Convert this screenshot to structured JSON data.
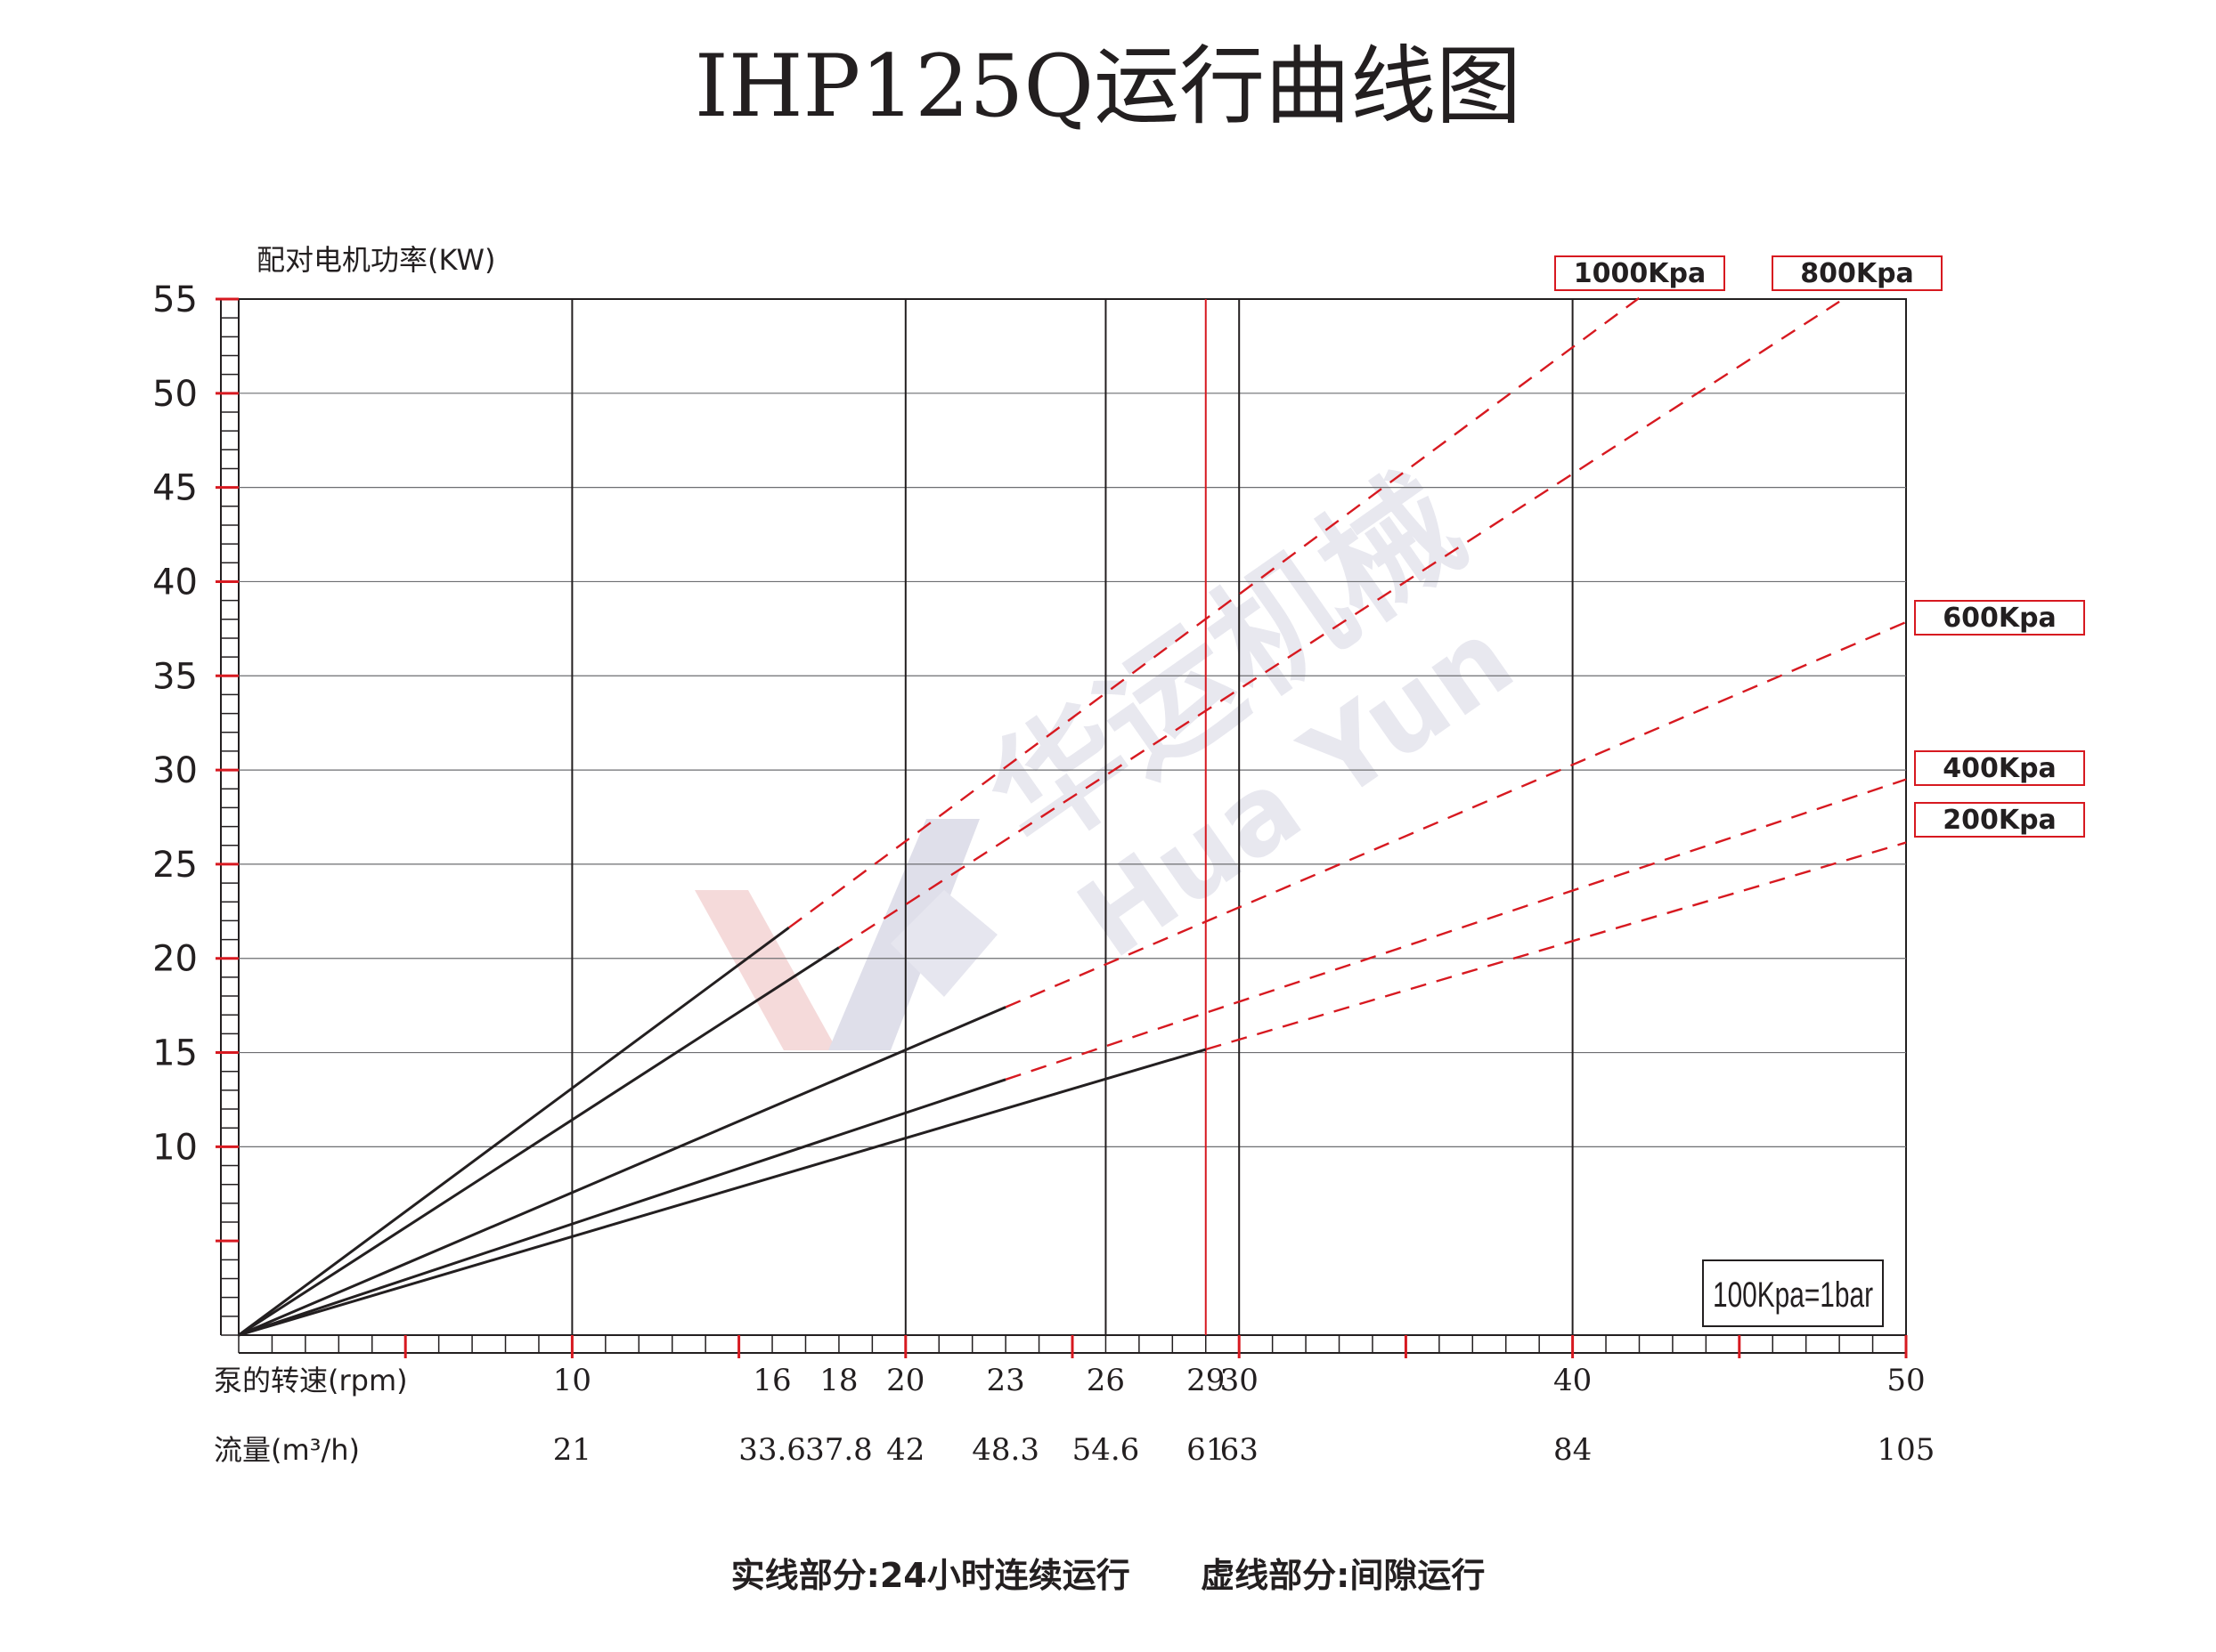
{
  "title": "IHP125Q运行曲线图",
  "footer_note": "实线部分:24小时连续运行      虚线部分:间隙运行",
  "unit_note": "100Kpa=1bar",
  "watermark": {
    "cn": "华运机械",
    "en": "Hua Yun"
  },
  "colors": {
    "solid": "#231f20",
    "dashed": "#d71920",
    "grid": "#231f20",
    "accent_red": "#d71920",
    "legend_border": "#d71920"
  },
  "chart_data": {
    "type": "line",
    "ylabel": "配对电机功率(KW)",
    "xlabel": "泵的转速(rpm)",
    "x2label": "流量(m³/h)",
    "ylim": [
      0,
      55
    ],
    "xlim": [
      0,
      50
    ],
    "yticks": [
      10,
      15,
      20,
      25,
      30,
      35,
      40,
      45,
      50,
      55
    ],
    "xticks": [
      {
        "rpm": 10,
        "rpm_label": "10",
        "flow_label": "21"
      },
      {
        "rpm": 16,
        "rpm_label": "16",
        "flow_label": "33.6"
      },
      {
        "rpm": 18,
        "rpm_label": "18",
        "flow_label": "37.8"
      },
      {
        "rpm": 20,
        "rpm_label": "20",
        "flow_label": "42"
      },
      {
        "rpm": 23,
        "rpm_label": "23",
        "flow_label": "48.3"
      },
      {
        "rpm": 26,
        "rpm_label": "26",
        "flow_label": "54.6"
      },
      {
        "rpm": 29,
        "rpm_label": "29",
        "flow_label": "61"
      },
      {
        "rpm": 30,
        "rpm_label": "30",
        "flow_label": "63"
      },
      {
        "rpm": 40,
        "rpm_label": "40",
        "flow_label": "84"
      },
      {
        "rpm": 50,
        "rpm_label": "50",
        "flow_label": "105"
      }
    ],
    "vertical_gridlines": [
      10,
      20,
      26,
      30,
      40
    ],
    "vertical_red_line": 29,
    "major_red_ticks": [
      5,
      10,
      15,
      20,
      25,
      30,
      35,
      40,
      45,
      50
    ],
    "series": [
      {
        "name": "1000Kpa",
        "slope": 1.311,
        "solid_to": 16.5,
        "dashed_to": 42.0
      },
      {
        "name": "800Kpa",
        "slope": 1.143,
        "solid_to": 18.0,
        "dashed_to": 48.0
      },
      {
        "name": "600Kpa",
        "slope": 0.757,
        "solid_to": 23.0,
        "dashed_to": 50.0
      },
      {
        "name": "400Kpa",
        "slope": 0.59,
        "solid_to": 23.0,
        "dashed_to": 50.0
      },
      {
        "name": "200Kpa",
        "slope": 0.523,
        "solid_to": 29.0,
        "dashed_to": 50.0
      }
    ]
  }
}
